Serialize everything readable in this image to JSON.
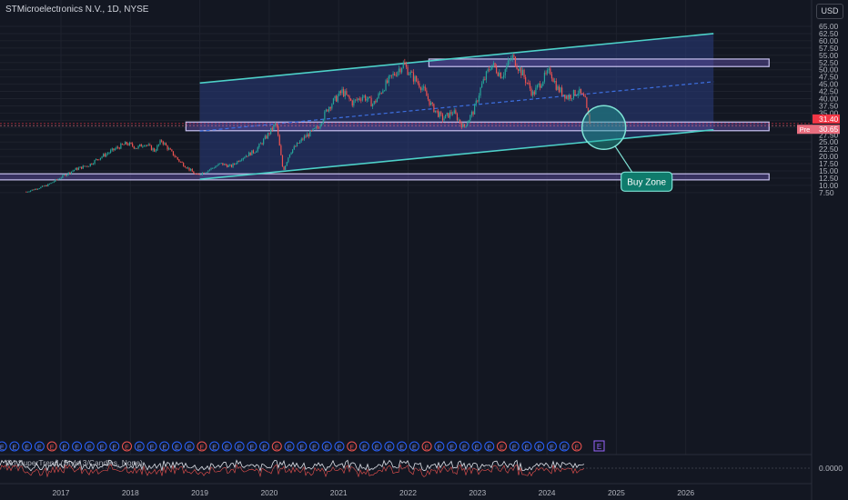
{
  "header": {
    "title": "STMicroelectronics N.V., 1D, NYSE"
  },
  "currency_button": "USD",
  "price_tags": [
    {
      "prefix": "",
      "value": "31.40",
      "color": "#f23645"
    },
    {
      "prefix": "Pre",
      "value": "30.65",
      "color": "#e96f80"
    }
  ],
  "annotation": {
    "label": "Buy Zone",
    "color": "#0f7b6c"
  },
  "indicator": {
    "label": "(A) SuperTrend (Style 3/Candles, None)",
    "axis_value": "0.0000"
  },
  "earnings_marker": "E",
  "colors": {
    "background": "#131722",
    "up": "#26a69a",
    "down": "#ef5350",
    "channel": "#4dd0c8",
    "channel_fill": "#2a3d7d",
    "zone_fill": "#5b4c9e",
    "midline": "#3d6fe0"
  },
  "chart_data": {
    "type": "candlestick",
    "title": "STMicroelectronics N.V., 1D, NYSE",
    "x_tick_labels": [
      "2017",
      "2018",
      "2019",
      "2020",
      "2021",
      "2022",
      "2023",
      "2024",
      "2025",
      "2026"
    ],
    "y_tick_labels": [
      "7.50",
      "10.00",
      "12.50",
      "15.00",
      "17.50",
      "20.00",
      "22.50",
      "25.00",
      "27.50",
      "30.00",
      "32.50",
      "35.00",
      "37.50",
      "40.00",
      "42.50",
      "45.00",
      "47.50",
      "50.00",
      "52.50",
      "55.00",
      "57.50",
      "60.00",
      "62.50",
      "65.00"
    ],
    "ylim": [
      5.5,
      67
    ],
    "price_path": [
      {
        "t": 2016.5,
        "p": 7.8
      },
      {
        "t": 2016.8,
        "p": 10.0
      },
      {
        "t": 2017.0,
        "p": 12.8
      },
      {
        "t": 2017.2,
        "p": 15.5
      },
      {
        "t": 2017.4,
        "p": 17.0
      },
      {
        "t": 2017.55,
        "p": 19.5
      },
      {
        "t": 2017.7,
        "p": 21.5
      },
      {
        "t": 2017.85,
        "p": 23.5
      },
      {
        "t": 2017.95,
        "p": 24.5
      },
      {
        "t": 2018.1,
        "p": 23.0
      },
      {
        "t": 2018.2,
        "p": 24.5
      },
      {
        "t": 2018.35,
        "p": 22.0
      },
      {
        "t": 2018.45,
        "p": 25.5
      },
      {
        "t": 2018.55,
        "p": 22.5
      },
      {
        "t": 2018.7,
        "p": 18.5
      },
      {
        "t": 2018.85,
        "p": 15.5
      },
      {
        "t": 2018.95,
        "p": 13.5
      },
      {
        "t": 2019.1,
        "p": 15.0
      },
      {
        "t": 2019.3,
        "p": 17.5
      },
      {
        "t": 2019.45,
        "p": 16.5
      },
      {
        "t": 2019.6,
        "p": 19.5
      },
      {
        "t": 2019.8,
        "p": 22.0
      },
      {
        "t": 2019.95,
        "p": 26.5
      },
      {
        "t": 2020.1,
        "p": 31.5
      },
      {
        "t": 2020.2,
        "p": 15.0
      },
      {
        "t": 2020.3,
        "p": 21.5
      },
      {
        "t": 2020.5,
        "p": 26.5
      },
      {
        "t": 2020.7,
        "p": 30.0
      },
      {
        "t": 2020.85,
        "p": 37.0
      },
      {
        "t": 2021.05,
        "p": 42.5
      },
      {
        "t": 2021.2,
        "p": 38.5
      },
      {
        "t": 2021.35,
        "p": 41.0
      },
      {
        "t": 2021.5,
        "p": 38.0
      },
      {
        "t": 2021.65,
        "p": 44.0
      },
      {
        "t": 2021.8,
        "p": 48.5
      },
      {
        "t": 2021.93,
        "p": 52.0
      },
      {
        "t": 2022.05,
        "p": 48.0
      },
      {
        "t": 2022.2,
        "p": 44.0
      },
      {
        "t": 2022.35,
        "p": 37.0
      },
      {
        "t": 2022.5,
        "p": 33.0
      },
      {
        "t": 2022.65,
        "p": 35.5
      },
      {
        "t": 2022.8,
        "p": 30.0
      },
      {
        "t": 2022.95,
        "p": 36.0
      },
      {
        "t": 2023.05,
        "p": 44.0
      },
      {
        "t": 2023.2,
        "p": 52.0
      },
      {
        "t": 2023.35,
        "p": 48.0
      },
      {
        "t": 2023.5,
        "p": 54.5
      },
      {
        "t": 2023.65,
        "p": 48.5
      },
      {
        "t": 2023.8,
        "p": 41.5
      },
      {
        "t": 2023.95,
        "p": 47.0
      },
      {
        "t": 2024.05,
        "p": 49.5
      },
      {
        "t": 2024.15,
        "p": 43.5
      },
      {
        "t": 2024.3,
        "p": 40.5
      },
      {
        "t": 2024.45,
        "p": 42.5
      },
      {
        "t": 2024.55,
        "p": 39.5
      },
      {
        "t": 2024.58,
        "p": 35.0
      },
      {
        "t": 2024.62,
        "p": 31.4
      }
    ],
    "channel": {
      "upper": [
        {
          "t": 2019.0,
          "p": 45.4
        },
        {
          "t": 2026.4,
          "p": 62.5
        }
      ],
      "lower": [
        {
          "t": 2019.0,
          "p": 12.1
        },
        {
          "t": 2026.4,
          "p": 29.2
        }
      ],
      "middle": [
        {
          "t": 2019.0,
          "p": 28.75
        },
        {
          "t": 2026.4,
          "p": 45.85
        }
      ]
    },
    "zones": [
      {
        "t1": 2022.3,
        "t2": 2027.2,
        "p1": 51.1,
        "p2": 53.7
      },
      {
        "t1": 2018.8,
        "t2": 2027.2,
        "p1": 28.9,
        "p2": 31.9
      },
      {
        "t1": 2015.9,
        "t2": 2027.2,
        "p1": 11.9,
        "p2": 14.0
      }
    ],
    "buy_zone": {
      "t": 2024.82,
      "p": 30.0
    }
  }
}
